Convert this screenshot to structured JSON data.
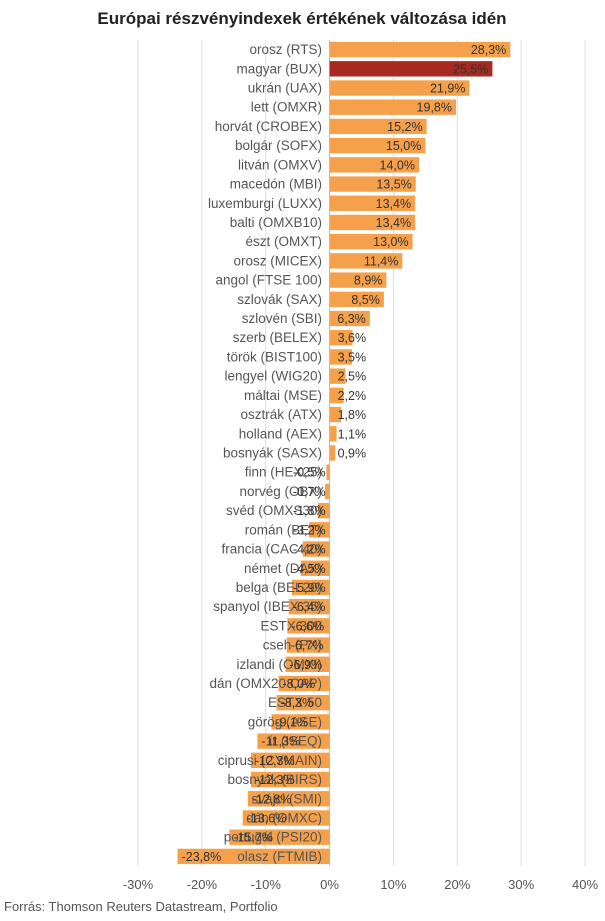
{
  "chart_data": {
    "type": "bar",
    "orientation": "horizontal",
    "title": "Európai részvényindexek értékének változása idén",
    "source": "Forrás: Thomson Reuters Datastream, Portfolio",
    "categories": [
      "orosz (RTS)",
      "magyar (BUX)",
      "ukrán (UAX)",
      "lett (OMXR)",
      "horvát (CROBEX)",
      "bolgár (SOFX)",
      "litván (OMXV)",
      "macedón (MBI)",
      "luxemburgi (LUXX)",
      "balti (OMXB10)",
      "észt (OMXT)",
      "orosz (MICEX)",
      "angol (FTSE 100)",
      "szlovák (SAX)",
      "szlovén (SBI)",
      "szerb (BELEX)",
      "török (BIST100)",
      "lengyel (WIG20)",
      "máltai (MSE)",
      "osztrák (ATX)",
      "holland (AEX)",
      "bosnyák (SASX)",
      "finn (HEX25)",
      "norvég (OBX)",
      "svéd (OMXS30)",
      "román (BET)",
      "francia (CAC 40)",
      "német (DAX)",
      "belga (BEL20)",
      "spanyol (IBEX 35)",
      "ESTX 300",
      "cseh (PX)",
      "izlandi (OMXI)",
      "dán (OMX20 CAP)",
      "ESTX 50",
      "görög (ASE)",
      "ír (ISEQ)",
      "ciprusi (CYMAIN)",
      "bosnyák (BIRS)",
      "svájci (SMI)",
      "dán (OMXC)",
      "portugál (PSI20)",
      "olasz (FTMIB)"
    ],
    "values": [
      28.3,
      25.5,
      21.9,
      19.8,
      15.2,
      15.0,
      14.0,
      13.5,
      13.4,
      13.4,
      13.0,
      11.4,
      8.9,
      8.5,
      6.3,
      3.6,
      3.5,
      2.5,
      2.2,
      1.8,
      1.1,
      0.9,
      -0.5,
      -0.7,
      -1.8,
      -3.2,
      -4.2,
      -4.5,
      -5.9,
      -6.4,
      -6.6,
      -6.7,
      -6.9,
      -8.0,
      -8.3,
      -9.1,
      -11.3,
      -12.3,
      -12.3,
      -12.8,
      -13.6,
      -15.7,
      -23.8
    ],
    "labels": [
      "28,3%",
      "25,5%",
      "21,9%",
      "19,8%",
      "15,2%",
      "15,0%",
      "14,0%",
      "13,5%",
      "13,4%",
      "13,4%",
      "13,0%",
      "11,4%",
      "8,9%",
      "8,5%",
      "6,3%",
      "3,6%",
      "3,5%",
      "2,5%",
      "2,2%",
      "1,8%",
      "1,1%",
      "0,9%",
      "-0,5%",
      "-0,7%",
      "-1,8%",
      "-3,2%",
      "-4,2%",
      "-4,5%",
      "-5,9%",
      "-6,4%",
      "-6,6%",
      "-6,7%",
      "-6,9%",
      "-8,0%",
      "-8,3%",
      "-9,1%",
      "-11,3%",
      "-12,3%",
      "-12,3%",
      "-12,8%",
      "-13,6%",
      "-15,7%",
      "-23,8%"
    ],
    "highlight_index": 1,
    "xlim": [
      -30,
      40
    ],
    "xticks": [
      -30,
      -20,
      -10,
      0,
      10,
      20,
      30,
      40
    ],
    "xtick_labels": [
      "-30%",
      "-20%",
      "-10%",
      "0%",
      "10%",
      "20%",
      "30%",
      "40%"
    ],
    "grid": true,
    "colors": {
      "bar": "#f5a04a",
      "highlight": "#a8291f",
      "grid": "#dddddd"
    }
  }
}
